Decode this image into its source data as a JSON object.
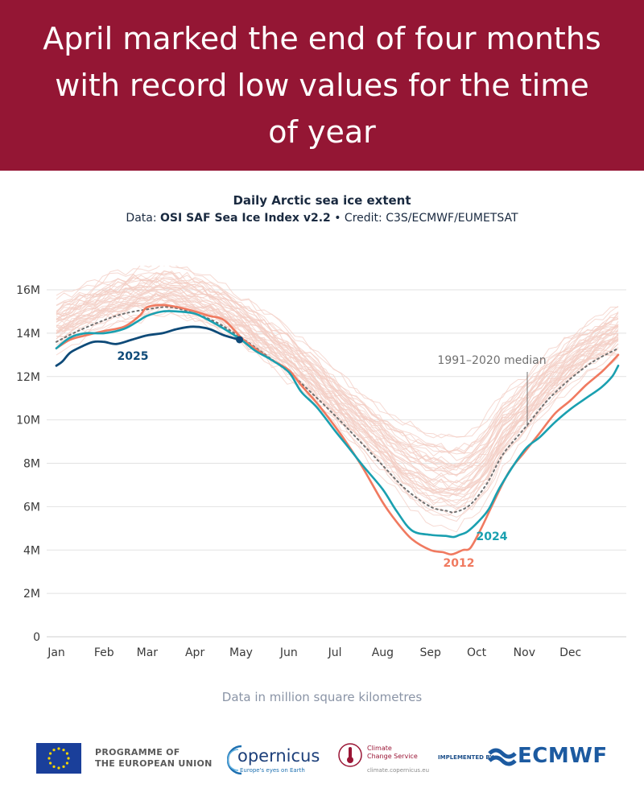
{
  "banner": {
    "title": "April marked the end of four months with record low values for the time of year"
  },
  "header": {
    "chart_title": "Daily Arctic sea ice extent",
    "credit_prefix": "Data: ",
    "credit_dataset": "OSI SAF Sea Ice Index v2.2",
    "credit_suffix": " • Credit: C3S/ECMWF/EUMETSAT"
  },
  "units_note": "Data in million square kilometres",
  "footer": {
    "eu_line1": "PROGRAMME OF",
    "eu_line2": "THE EUROPEAN UNION",
    "copernicus_name": "opernicus",
    "copernicus_tagline": "Europe's eyes on Earth",
    "c3s_line1": "Climate",
    "c3s_line2": "Change Service",
    "c3s_url": "climate.copernicus.eu",
    "implemented_by": "IMPLEMENTED BY",
    "ecmwf_name": "ECMWF"
  },
  "colors": {
    "banner": "#941634",
    "y2025": "#0e4a78",
    "y2024": "#1aa0b0",
    "y2012": "#f07a60",
    "background_years": "#f3cdc4",
    "median": "#707070",
    "grid": "#e2e2e2"
  },
  "chart_data": {
    "type": "line",
    "title": "Daily Arctic sea ice extent",
    "ylabel": "",
    "xlabel": "",
    "y_unit": "million km²",
    "ylim": [
      0,
      16
    ],
    "y_ticks": [
      {
        "value": 0,
        "label": "0"
      },
      {
        "value": 2,
        "label": "2M"
      },
      {
        "value": 4,
        "label": "4M"
      },
      {
        "value": 6,
        "label": "6M"
      },
      {
        "value": 8,
        "label": "8M"
      },
      {
        "value": 10,
        "label": "10M"
      },
      {
        "value": 12,
        "label": "12M"
      },
      {
        "value": 14,
        "label": "14M"
      },
      {
        "value": 16,
        "label": "16M"
      }
    ],
    "x_ticks": [
      {
        "day": 1,
        "label": "Jan"
      },
      {
        "day": 32,
        "label": "Feb"
      },
      {
        "day": 60,
        "label": "Mar"
      },
      {
        "day": 91,
        "label": "Apr"
      },
      {
        "day": 121,
        "label": "May"
      },
      {
        "day": 152,
        "label": "Jun"
      },
      {
        "day": 182,
        "label": "Jul"
      },
      {
        "day": 213,
        "label": "Aug"
      },
      {
        "day": 244,
        "label": "Sep"
      },
      {
        "day": 274,
        "label": "Oct"
      },
      {
        "day": 305,
        "label": "Nov"
      },
      {
        "day": 335,
        "label": "Dec"
      }
    ],
    "grid": true,
    "legend": "none (direct labels)",
    "background_years_note": "many thin faded lines for earlier years",
    "series": [
      {
        "name": "1991–2020 median",
        "style": "dotted",
        "points": [
          [
            1,
            13.6
          ],
          [
            15,
            14.1
          ],
          [
            32,
            14.6
          ],
          [
            45,
            14.9
          ],
          [
            60,
            15.1
          ],
          [
            75,
            15.2
          ],
          [
            91,
            14.9
          ],
          [
            105,
            14.5
          ],
          [
            121,
            13.8
          ],
          [
            135,
            13.1
          ],
          [
            152,
            12.2
          ],
          [
            166,
            11.3
          ],
          [
            182,
            10.2
          ],
          [
            197,
            9.1
          ],
          [
            213,
            7.9
          ],
          [
            228,
            6.8
          ],
          [
            244,
            6.0
          ],
          [
            255,
            5.8
          ],
          [
            260,
            5.75
          ],
          [
            270,
            6.1
          ],
          [
            281,
            7.1
          ],
          [
            291,
            8.4
          ],
          [
            305,
            9.6
          ],
          [
            320,
            10.9
          ],
          [
            335,
            11.9
          ],
          [
            350,
            12.7
          ],
          [
            366,
            13.3
          ]
        ]
      },
      {
        "name": "2012",
        "style": "solid",
        "points": [
          [
            1,
            13.3
          ],
          [
            10,
            13.7
          ],
          [
            20,
            13.9
          ],
          [
            32,
            14.1
          ],
          [
            45,
            14.3
          ],
          [
            55,
            14.8
          ],
          [
            60,
            15.2
          ],
          [
            70,
            15.3
          ],
          [
            80,
            15.2
          ],
          [
            91,
            15.0
          ],
          [
            100,
            14.8
          ],
          [
            110,
            14.6
          ],
          [
            121,
            13.8
          ],
          [
            130,
            13.3
          ],
          [
            140,
            12.8
          ],
          [
            152,
            12.3
          ],
          [
            160,
            11.6
          ],
          [
            170,
            10.8
          ],
          [
            182,
            9.7
          ],
          [
            190,
            8.9
          ],
          [
            200,
            7.8
          ],
          [
            213,
            6.2
          ],
          [
            222,
            5.3
          ],
          [
            232,
            4.5
          ],
          [
            244,
            4.0
          ],
          [
            252,
            3.9
          ],
          [
            258,
            3.8
          ],
          [
            265,
            4.0
          ],
          [
            270,
            4.1
          ],
          [
            277,
            5.0
          ],
          [
            285,
            6.2
          ],
          [
            295,
            7.6
          ],
          [
            305,
            8.5
          ],
          [
            315,
            9.4
          ],
          [
            325,
            10.3
          ],
          [
            335,
            10.9
          ],
          [
            345,
            11.6
          ],
          [
            355,
            12.2
          ],
          [
            362,
            12.7
          ],
          [
            366,
            13.0
          ]
        ]
      },
      {
        "name": "2024",
        "style": "solid",
        "points": [
          [
            1,
            13.3
          ],
          [
            10,
            13.8
          ],
          [
            20,
            14.0
          ],
          [
            32,
            14.0
          ],
          [
            45,
            14.2
          ],
          [
            55,
            14.6
          ],
          [
            60,
            14.8
          ],
          [
            70,
            15.0
          ],
          [
            80,
            15.0
          ],
          [
            91,
            14.9
          ],
          [
            100,
            14.6
          ],
          [
            110,
            14.2
          ],
          [
            121,
            13.7
          ],
          [
            130,
            13.2
          ],
          [
            140,
            12.8
          ],
          [
            152,
            12.2
          ],
          [
            160,
            11.3
          ],
          [
            170,
            10.6
          ],
          [
            182,
            9.5
          ],
          [
            190,
            8.8
          ],
          [
            200,
            7.9
          ],
          [
            213,
            6.8
          ],
          [
            222,
            5.8
          ],
          [
            232,
            4.9
          ],
          [
            244,
            4.7
          ],
          [
            254,
            4.65
          ],
          [
            259,
            4.6
          ],
          [
            263,
            4.7
          ],
          [
            268,
            4.85
          ],
          [
            275,
            5.3
          ],
          [
            282,
            5.9
          ],
          [
            290,
            7.0
          ],
          [
            305,
            8.6
          ],
          [
            315,
            9.2
          ],
          [
            325,
            9.9
          ],
          [
            335,
            10.5
          ],
          [
            345,
            11.0
          ],
          [
            355,
            11.5
          ],
          [
            362,
            12.0
          ],
          [
            366,
            12.5
          ]
        ]
      },
      {
        "name": "2025",
        "style": "solid",
        "endpoint_marker": true,
        "points": [
          [
            1,
            12.5
          ],
          [
            5,
            12.7
          ],
          [
            10,
            13.1
          ],
          [
            18,
            13.4
          ],
          [
            25,
            13.6
          ],
          [
            32,
            13.6
          ],
          [
            40,
            13.5
          ],
          [
            50,
            13.7
          ],
          [
            60,
            13.9
          ],
          [
            70,
            14.0
          ],
          [
            80,
            14.2
          ],
          [
            90,
            14.3
          ],
          [
            100,
            14.2
          ],
          [
            110,
            13.9
          ],
          [
            120,
            13.7
          ]
        ]
      }
    ],
    "annotations": [
      {
        "text": "2025",
        "series": "2025"
      },
      {
        "text": "2024",
        "series": "2024"
      },
      {
        "text": "2012",
        "series": "2012"
      },
      {
        "text": "1991–2020 median",
        "series": "1991–2020 median"
      }
    ]
  }
}
